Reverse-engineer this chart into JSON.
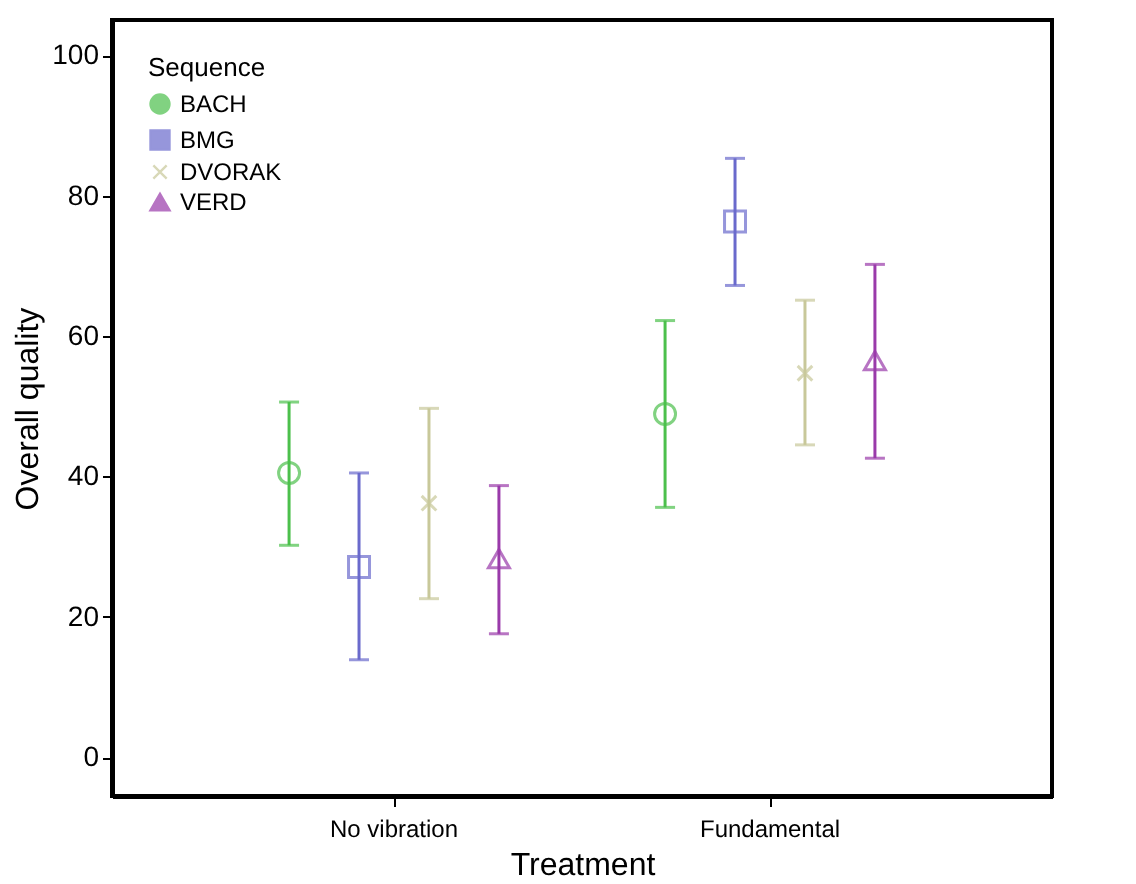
{
  "chart_data": {
    "type": "scatter",
    "xlabel": "Treatment",
    "ylabel": "Overall quality",
    "legend_title": "Sequence",
    "legend": "top left",
    "grid": false,
    "categories": [
      "No vibration",
      "Fundamental"
    ],
    "ylim": [
      -5.5,
      105
    ],
    "yticks": [
      0,
      20,
      40,
      60,
      80,
      100
    ],
    "series": [
      {
        "name": "BACH",
        "color": "#4cc04c",
        "marker": "circle",
        "values": [
          40.5,
          48.9
        ],
        "errors": [
          [
            30.2,
            50.6
          ],
          [
            35.6,
            62.2
          ]
        ]
      },
      {
        "name": "BMG",
        "color": "#6a6acc",
        "marker": "square",
        "values": [
          27.1,
          76.3
        ],
        "errors": [
          [
            13.9,
            40.5
          ],
          [
            67.2,
            85.3
          ]
        ]
      },
      {
        "name": "DVORAK",
        "color": "#c8c89a",
        "marker": "cross",
        "values": [
          36.2,
          54.7
        ],
        "errors": [
          [
            22.6,
            49.7
          ],
          [
            44.5,
            65.1
          ]
        ]
      },
      {
        "name": "VERD",
        "color": "#9a3aaa",
        "marker": "triangle",
        "values": [
          28.3,
          56.5
        ],
        "errors": [
          [
            17.6,
            38.7
          ],
          [
            42.6,
            70.2
          ]
        ]
      }
    ]
  }
}
